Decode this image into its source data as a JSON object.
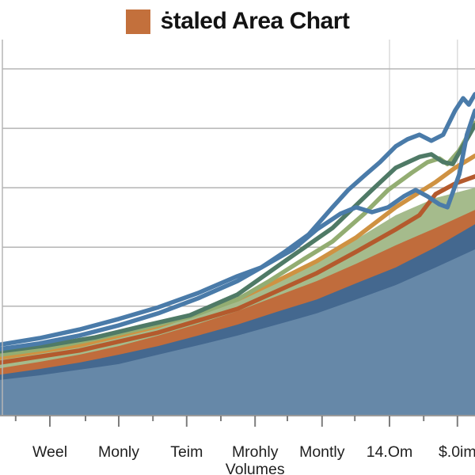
{
  "chart_data": {
    "type": "area",
    "title": "ṡtaled Area Chart",
    "legend_color": "#c3703c",
    "xlabel": "",
    "ylabel": "",
    "y_axis_labels_visible": [],
    "y_units": "unlabeled (estimated 0-100 scale)",
    "grid": true,
    "y_gridline_values": [
      92.2,
      76.4,
      60.6,
      44.8,
      29.1,
      13.3
    ],
    "v_gridlines_x": [
      82,
      96.3
    ],
    "x_axis": {
      "major_tick_x": [
        10.5,
        25,
        39.3,
        53.7,
        67.8,
        82,
        96.3
      ],
      "minor_tick_x": [
        3.3,
        18,
        32.2,
        46.5,
        60.5,
        74.7,
        89.2
      ],
      "labels": [
        {
          "lines": [
            "Weel"
          ],
          "x": 10.5
        },
        {
          "lines": [
            "Monly"
          ],
          "x": 25
        },
        {
          "lines": [
            "Teim"
          ],
          "x": 39.3
        },
        {
          "lines": [
            "Mrohly",
            "Volumes"
          ],
          "x": 53.7
        },
        {
          "lines": [
            "Montly"
          ],
          "x": 67.8
        },
        {
          "lines": [
            "14.Om"
          ],
          "x": 82
        },
        {
          "lines": [
            "$.0im"
          ],
          "x": 96.3
        }
      ]
    },
    "areas": [
      {
        "name": "green-area",
        "color": "#a5bb8c",
        "points": [
          [
            0,
            15.4
          ],
          [
            8.3,
            17.3
          ],
          [
            16.7,
            19.6
          ],
          [
            25,
            22.3
          ],
          [
            33.3,
            24.6
          ],
          [
            41.7,
            27.6
          ],
          [
            50,
            31.4
          ],
          [
            58.3,
            36.4
          ],
          [
            66.7,
            41.1
          ],
          [
            75,
            46.9
          ],
          [
            83.3,
            53.3
          ],
          [
            91.7,
            57.9
          ],
          [
            100,
            60.6
          ]
        ]
      },
      {
        "name": "rust-area",
        "color": "#c06c3c",
        "points": [
          [
            0,
            12.6
          ],
          [
            8.3,
            14.3
          ],
          [
            16.7,
            16.2
          ],
          [
            25,
            18.5
          ],
          [
            33.3,
            21.3
          ],
          [
            41.7,
            24.4
          ],
          [
            50,
            27.8
          ],
          [
            58.3,
            31.8
          ],
          [
            66.7,
            35.8
          ],
          [
            75,
            40.4
          ],
          [
            83.3,
            45.3
          ],
          [
            91.7,
            49.9
          ],
          [
            100,
            54.7
          ]
        ]
      },
      {
        "name": "dark-blue-band-area",
        "color": "#44688f",
        "points": [
          [
            0,
            10.9
          ],
          [
            8.3,
            12.4
          ],
          [
            16.7,
            14.1
          ],
          [
            25,
            16.2
          ],
          [
            33.3,
            18.5
          ],
          [
            41.7,
            21.3
          ],
          [
            50,
            24.2
          ],
          [
            58.3,
            27.6
          ],
          [
            66.7,
            30.9
          ],
          [
            75,
            35.2
          ],
          [
            83.3,
            39.4
          ],
          [
            91.7,
            44.8
          ],
          [
            100,
            50.9
          ]
        ]
      },
      {
        "name": "blue-area",
        "color": "#6688a8",
        "points": [
          [
            0,
            9.5
          ],
          [
            8.3,
            10.7
          ],
          [
            16.7,
            12.2
          ],
          [
            25,
            13.7
          ],
          [
            33.3,
            16.2
          ],
          [
            41.7,
            18.7
          ],
          [
            50,
            21.3
          ],
          [
            58.3,
            24.2
          ],
          [
            66.7,
            27.2
          ],
          [
            75,
            30.9
          ],
          [
            83.3,
            34.7
          ],
          [
            91.7,
            39.4
          ],
          [
            100,
            44.2
          ]
        ]
      }
    ],
    "lines": [
      {
        "name": "rust-line",
        "color": "#b45a2d",
        "points": [
          [
            0,
            14.1
          ],
          [
            16.7,
            17.3
          ],
          [
            33.3,
            22.1
          ],
          [
            50,
            28.4
          ],
          [
            58.3,
            33.1
          ],
          [
            66.7,
            37.9
          ],
          [
            75,
            43.6
          ],
          [
            83.3,
            49.5
          ],
          [
            88.3,
            53.3
          ],
          [
            91.7,
            58.9
          ],
          [
            95.8,
            61.7
          ],
          [
            100,
            63.6
          ]
        ]
      },
      {
        "name": "orange-line",
        "color": "#cf9242",
        "points": [
          [
            0,
            15.4
          ],
          [
            16.7,
            18.7
          ],
          [
            33.3,
            23.8
          ],
          [
            50,
            30.9
          ],
          [
            58.3,
            35.8
          ],
          [
            66.7,
            41.1
          ],
          [
            75,
            47.4
          ],
          [
            83.3,
            55.4
          ],
          [
            91.7,
            62.1
          ],
          [
            95.8,
            65.9
          ],
          [
            100,
            69.1
          ]
        ]
      },
      {
        "name": "green-line",
        "color": "#93ad72",
        "points": [
          [
            0,
            16.2
          ],
          [
            10,
            17.9
          ],
          [
            20,
            20.4
          ],
          [
            30,
            23.2
          ],
          [
            40,
            26.3
          ],
          [
            50,
            30.9
          ],
          [
            56.7,
            35.8
          ],
          [
            63.3,
            41.1
          ],
          [
            70,
            46.3
          ],
          [
            76.7,
            53.7
          ],
          [
            81.7,
            60
          ],
          [
            86.7,
            64.6
          ],
          [
            90,
            67.4
          ],
          [
            92.5,
            68.4
          ],
          [
            94.2,
            66.9
          ],
          [
            96.7,
            70.5
          ],
          [
            100,
            77.9
          ]
        ]
      },
      {
        "name": "teal-line",
        "color": "#4f7a66",
        "points": [
          [
            0,
            17.1
          ],
          [
            10,
            18.7
          ],
          [
            20,
            20.8
          ],
          [
            30,
            23.8
          ],
          [
            40,
            26.7
          ],
          [
            50,
            32.2
          ],
          [
            60,
            41.1
          ],
          [
            70,
            49.9
          ],
          [
            78.3,
            60
          ],
          [
            83.3,
            65.9
          ],
          [
            88.3,
            68.8
          ],
          [
            90.8,
            69.5
          ],
          [
            93.3,
            67.4
          ],
          [
            95.3,
            66.9
          ],
          [
            100,
            77.3
          ]
        ]
      },
      {
        "name": "blue-line-1",
        "color": "#4a7ba9",
        "points": [
          [
            0,
            17.7
          ],
          [
            8.3,
            19.2
          ],
          [
            16.7,
            21.3
          ],
          [
            25,
            24
          ],
          [
            33.3,
            27.2
          ],
          [
            41.7,
            31.2
          ],
          [
            50,
            35.8
          ],
          [
            56.7,
            40.6
          ],
          [
            61.7,
            44.2
          ],
          [
            66.7,
            49.5
          ],
          [
            71.7,
            53.7
          ],
          [
            75,
            55.4
          ],
          [
            78.3,
            54.1
          ],
          [
            81.7,
            55.4
          ],
          [
            85,
            58.3
          ],
          [
            87.5,
            60
          ],
          [
            90,
            58.3
          ],
          [
            92.5,
            56.2
          ],
          [
            94.2,
            55.4
          ],
          [
            96.7,
            64.2
          ],
          [
            98.3,
            74.7
          ],
          [
            100,
            81.1
          ]
        ]
      },
      {
        "name": "blue-line-2",
        "color": "#4a7ba9",
        "points": [
          [
            0,
            18.9
          ],
          [
            8.3,
            20.6
          ],
          [
            16.7,
            22.9
          ],
          [
            25,
            25.7
          ],
          [
            33.3,
            28.8
          ],
          [
            41.7,
            32.6
          ],
          [
            50,
            37.1
          ],
          [
            55,
            39.4
          ],
          [
            60,
            43.6
          ],
          [
            65,
            48.2
          ],
          [
            70,
            55.4
          ],
          [
            73.3,
            60
          ],
          [
            76.7,
            63.8
          ],
          [
            80,
            67.4
          ],
          [
            83.3,
            71.6
          ],
          [
            85.8,
            73.5
          ],
          [
            88.3,
            74.7
          ],
          [
            90.8,
            73.1
          ],
          [
            93.3,
            74.7
          ],
          [
            95.8,
            81.1
          ],
          [
            97.5,
            84.4
          ],
          [
            98.7,
            82.7
          ],
          [
            100,
            85.5
          ]
        ]
      }
    ],
    "colors": {
      "grid": "#b5b5b5",
      "vertical_grid": "#dcdcdc",
      "axis": "#9a9a9a",
      "tick": "#7d7d7d",
      "label_text": "#1f1f1f"
    }
  }
}
